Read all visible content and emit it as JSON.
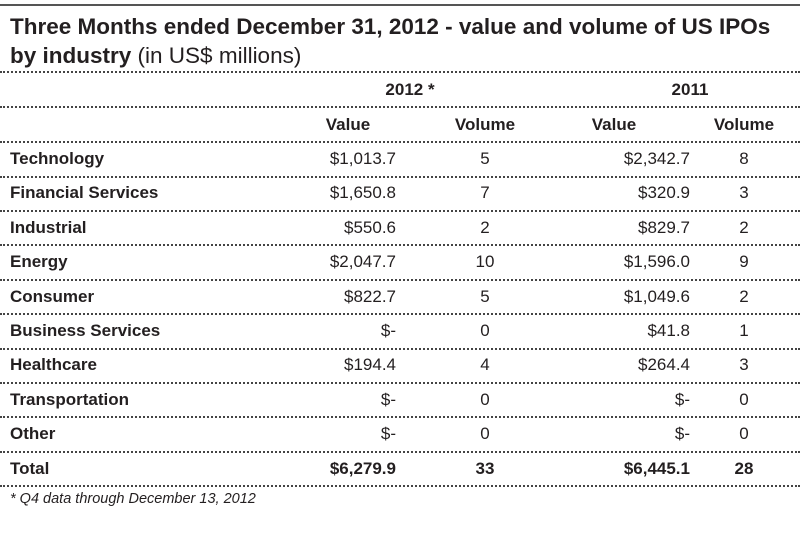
{
  "title": {
    "bold": "Three Months ended December 31, 2012 - value and volume of US IPOs by industry",
    "normal": "(in US$ millions)"
  },
  "footnote": "* Q4 data through December 13, 2012",
  "chart_data": {
    "type": "table",
    "title": "Three Months ended December 31, 2012 - value and volume of US IPOs by industry (in US$ millions)",
    "year_headers": [
      "2012 *",
      "2011"
    ],
    "columns": [
      "Value",
      "Volume",
      "Value",
      "Volume"
    ],
    "rows": [
      {
        "label": "Technology",
        "cells": [
          "$1,013.7",
          "5",
          "$2,342.7",
          "8"
        ]
      },
      {
        "label": "Financial Services",
        "cells": [
          "$1,650.8",
          "7",
          "$320.9",
          "3"
        ]
      },
      {
        "label": "Industrial",
        "cells": [
          "$550.6",
          "2",
          "$829.7",
          "2"
        ]
      },
      {
        "label": "Energy",
        "cells": [
          "$2,047.7",
          "10",
          "$1,596.0",
          "9"
        ]
      },
      {
        "label": "Consumer",
        "cells": [
          "$822.7",
          "5",
          "$1,049.6",
          "2"
        ]
      },
      {
        "label": "Business Services",
        "cells": [
          "$-",
          "0",
          "$41.8",
          "1"
        ]
      },
      {
        "label": "Healthcare",
        "cells": [
          "$194.4",
          "4",
          "$264.4",
          "3"
        ]
      },
      {
        "label": "Transportation",
        "cells": [
          "$-",
          "0",
          "$-",
          "0"
        ]
      },
      {
        "label": "Other",
        "cells": [
          "$-",
          "0",
          "$-",
          "0"
        ]
      }
    ],
    "total": {
      "label": "Total",
      "cells": [
        "$6,279.9",
        "33",
        "$6,445.1",
        "28"
      ]
    }
  }
}
